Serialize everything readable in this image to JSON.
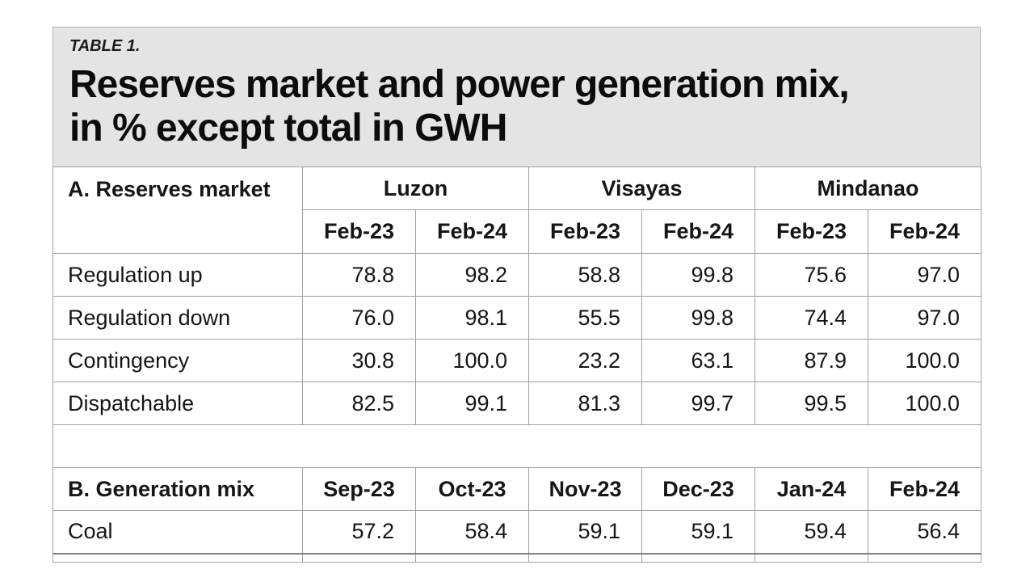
{
  "figure": {
    "kicker": "TABLE 1.",
    "title_line1": "Reserves market and power generation mix,",
    "title_line2": "in % except total in GWH"
  },
  "colors": {
    "title_bg": "#e4e4e5",
    "table_border": "#a0a0a0",
    "section_divider": "#7e7e7e",
    "text": "#161616"
  },
  "chart_data": {
    "type": "table",
    "title": "Reserves market and power generation mix, in % except total in GWH",
    "sections": [
      {
        "name": "A. Reserves market",
        "column_groups": [
          "Luzon",
          "Visayas",
          "Mindanao"
        ],
        "columns": [
          "Feb-23",
          "Feb-24",
          "Feb-23",
          "Feb-24",
          "Feb-23",
          "Feb-24"
        ],
        "rows": [
          {
            "label": "Regulation up",
            "values": [
              "78.8",
              "98.2",
              "58.8",
              "99.8",
              "75.6",
              "97.0"
            ]
          },
          {
            "label": "Regulation down",
            "values": [
              "76.0",
              "98.1",
              "55.5",
              "99.8",
              "74.4",
              "97.0"
            ]
          },
          {
            "label": "Contingency",
            "values": [
              "30.8",
              "100.0",
              "23.2",
              "63.1",
              "87.9",
              "100.0"
            ]
          },
          {
            "label": "Dispatchable",
            "values": [
              "82.5",
              "99.1",
              "81.3",
              "99.7",
              "99.5",
              "100.0"
            ]
          }
        ]
      },
      {
        "name": "B. Generation mix",
        "columns": [
          "Sep-23",
          "Oct-23",
          "Nov-23",
          "Dec-23",
          "Jan-24",
          "Feb-24"
        ],
        "rows": [
          {
            "label": "Coal",
            "values": [
              "57.2",
              "58.4",
              "59.1",
              "59.1",
              "59.4",
              "56.4"
            ]
          }
        ]
      }
    ]
  }
}
